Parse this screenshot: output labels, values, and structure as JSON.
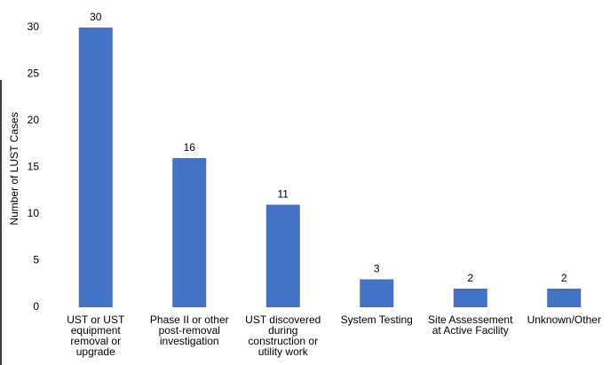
{
  "chart_data": {
    "type": "bar",
    "y_label": "Number of LUST Cases",
    "categories": [
      "UST or UST equipment removal or upgrade",
      "Phase II or other post-removal investigation",
      "UST discovered during construction or utility work",
      "System Testing",
      "Site Assessement at Active Facility",
      "Unknown/Other"
    ],
    "values": [
      30,
      16,
      11,
      3,
      2,
      2
    ],
    "color": "#4472c4",
    "ylim": [
      0,
      30
    ],
    "yticks": [
      0,
      5,
      10,
      15,
      20,
      25,
      30
    ],
    "grid": false,
    "value_labels_shown": true
  }
}
